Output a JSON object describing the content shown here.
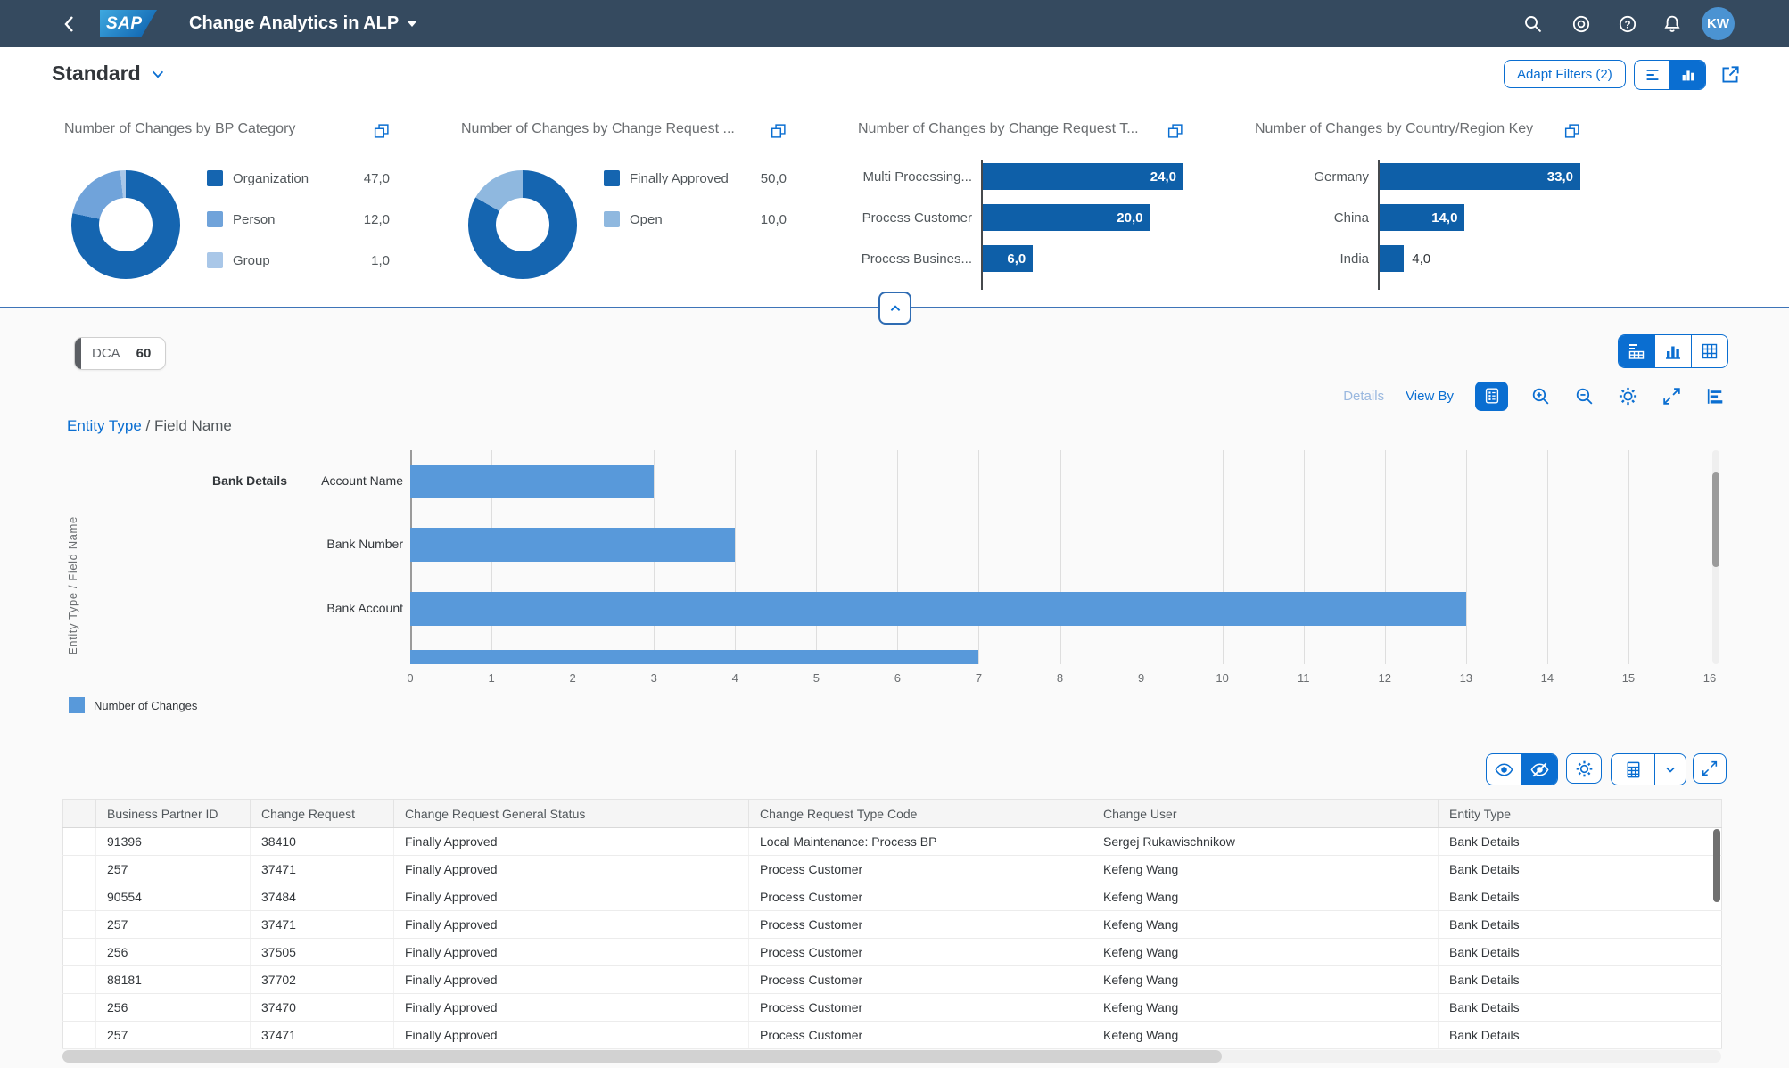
{
  "shell": {
    "logo": "SAP",
    "title": "Change Analytics in ALP",
    "avatar": "KW"
  },
  "filter_bar": {
    "variant": "Standard",
    "adapt_filters": "Adapt Filters (2)"
  },
  "chart_section": {
    "chip_label": "DCA",
    "chip_value": "60",
    "details_label": "Details",
    "view_by_label": "View By",
    "breadcrumb_link": "Entity Type",
    "breadcrumb_rest": " / Field Name",
    "axis_title": "Entity Type / Field Name"
  },
  "chart_data": [
    {
      "type": "pie",
      "subtype": "donut",
      "title": "Number of Changes by BP Category",
      "categories": [
        "Organization",
        "Person",
        "Group"
      ],
      "values": [
        47,
        12,
        1
      ],
      "display_values": [
        "47,0",
        "12,0",
        "1,0"
      ],
      "colors": [
        "#1565B0",
        "#70A3DA",
        "#A9C7E8"
      ],
      "legend_position": "right"
    },
    {
      "type": "pie",
      "subtype": "donut",
      "title": "Number of Changes by Change Request ...",
      "categories": [
        "Finally Approved",
        "Open"
      ],
      "values": [
        50,
        10
      ],
      "display_values": [
        "50,0",
        "10,0"
      ],
      "colors": [
        "#1565B0",
        "#8FB8DF"
      ],
      "legend_position": "right"
    },
    {
      "type": "bar",
      "orientation": "horizontal",
      "title": "Number of Changes by Change Request T...",
      "categories": [
        "Multi Processing...",
        "Process Customer",
        "Process Busines..."
      ],
      "values": [
        24,
        20,
        6
      ],
      "display_values": [
        "24,0",
        "20,0",
        "6,0"
      ],
      "color": "#0E5FA8"
    },
    {
      "type": "bar",
      "orientation": "horizontal",
      "title": "Number of Changes by Country/Region Key",
      "categories": [
        "Germany",
        "China",
        "India"
      ],
      "values": [
        33,
        14,
        4
      ],
      "display_values": [
        "33,0",
        "14,0",
        "4,0"
      ],
      "color": "#0E5FA8"
    },
    {
      "type": "bar",
      "orientation": "horizontal",
      "title": "Entity Type / Field Name",
      "group": "Bank Details",
      "categories": [
        "Account Name",
        "Bank Number",
        "Bank Account",
        ""
      ],
      "values": [
        3,
        4,
        13,
        7
      ],
      "xlim": [
        0,
        16
      ],
      "x_tick_step": 1,
      "grid": true,
      "legend_label": "Number of Changes",
      "color": "#5899DA",
      "ylabel": "Entity Type / Field Name",
      "clipped_last_bar": true
    }
  ],
  "table": {
    "columns": [
      "Business Partner ID",
      "Change Request",
      "Change Request General Status",
      "Change Request Type Code",
      "Change User",
      "Entity Type"
    ],
    "rows": [
      [
        "91396",
        "38410",
        "Finally Approved",
        "Local Maintenance: Process BP",
        "Sergej Rukawischnikow",
        "Bank Details"
      ],
      [
        "257",
        "37471",
        "Finally Approved",
        "Process Customer",
        "Kefeng Wang",
        "Bank Details"
      ],
      [
        "90554",
        "37484",
        "Finally Approved",
        "Process Customer",
        "Kefeng Wang",
        "Bank Details"
      ],
      [
        "257",
        "37471",
        "Finally Approved",
        "Process Customer",
        "Kefeng Wang",
        "Bank Details"
      ],
      [
        "256",
        "37505",
        "Finally Approved",
        "Process Customer",
        "Kefeng Wang",
        "Bank Details"
      ],
      [
        "88181",
        "37702",
        "Finally Approved",
        "Process Customer",
        "Kefeng Wang",
        "Bank Details"
      ],
      [
        "256",
        "37470",
        "Finally Approved",
        "Process Customer",
        "Kefeng Wang",
        "Bank Details"
      ],
      [
        "257",
        "37471",
        "Finally Approved",
        "Process Customer",
        "Kefeng Wang",
        "Bank Details"
      ]
    ]
  },
  "icons": {
    "back": "chevron-left",
    "search": "magnifier",
    "copilot": "concentric-circles",
    "help": "question-mark-circle",
    "notifications": "bell",
    "title-dropdown": "caret-down",
    "variant-dropdown": "chevron-down",
    "filter-bar-view": "horizontal-lines",
    "chart-bar-view": "vertical-bars",
    "share": "box-arrow-out",
    "duplicate": "two-overlapping-squares",
    "collapse-header": "chevron-up",
    "view-hybrid": "chart-plus-table",
    "view-chart": "bar-chart",
    "view-table": "grid",
    "show-legend": "legend-card",
    "zoom-in": "magnifier-plus",
    "zoom-out": "magnifier-minus",
    "settings": "gear",
    "full-screen": "corner-arrows",
    "chart-type": "horizontal-bars",
    "show-details": "eye",
    "hide-details": "eye-slash",
    "export": "spreadsheet",
    "export-menu": "chevron-down"
  },
  "colors": {
    "shell_bg": "#354A5F",
    "accent": "#0A6ED1",
    "avatar_bg": "#4B93D2",
    "kpi_bar": "#0E5FA8",
    "main_bar": "#5899DA",
    "donut_dark": "#1565B0",
    "donut_medium": "#70A3DA",
    "donut_light": "#A9C7E8",
    "donut_open": "#8FB8DF",
    "separator_line": "#3E74B8",
    "text_dark": "#32363A",
    "text_gray": "#6A6D70"
  }
}
